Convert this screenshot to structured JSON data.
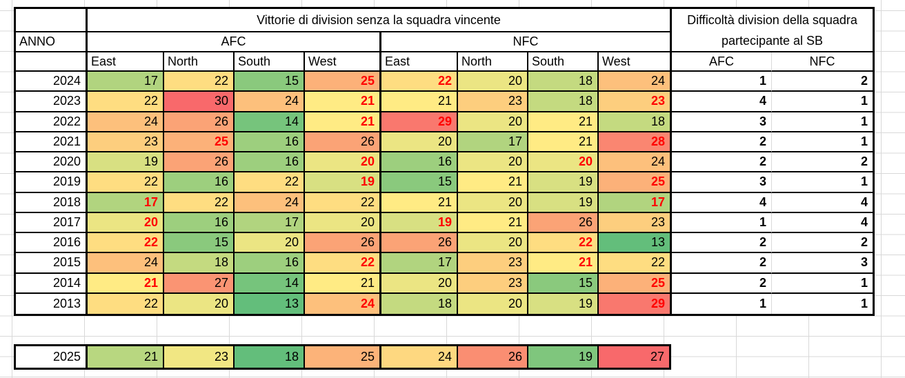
{
  "title": "Vittorie di division senza la squadra vincente",
  "anno_label": "ANNO",
  "conference_headers": [
    "AFC",
    "NFC"
  ],
  "division_headers": [
    "East",
    "North",
    "South",
    "West"
  ],
  "difficulty_header": "Difficoltà division della squadra partecipante al SB",
  "difficulty_subheaders": [
    "AFC",
    "NFC"
  ],
  "colors": {
    "red_highlight_text": "#FF0000",
    "border": "#000000",
    "gridline": "#D8D8D8",
    "scale_min_green": "#63BE7B",
    "scale_mid_yellow": "#FFEB84",
    "scale_max_red": "#F8696B"
  },
  "rows": [
    {
      "year": "2024",
      "cells": [
        {
          "v": "17",
          "bg": "#B1D47F",
          "red": false
        },
        {
          "v": "22",
          "bg": "#FEDD81",
          "red": false
        },
        {
          "v": "15",
          "bg": "#8AC97D",
          "red": false
        },
        {
          "v": "25",
          "bg": "#FCB179",
          "red": true
        },
        {
          "v": "22",
          "bg": "#FEDD81",
          "red": true
        },
        {
          "v": "20",
          "bg": "#EBE583",
          "red": false
        },
        {
          "v": "18",
          "bg": "#C4DA80",
          "red": false
        },
        {
          "v": "24",
          "bg": "#FDC07C",
          "red": false
        }
      ],
      "afc_diff": "1",
      "nfc_diff": "2"
    },
    {
      "year": "2023",
      "cells": [
        {
          "v": "22",
          "bg": "#FEDD81",
          "red": false
        },
        {
          "v": "30",
          "bg": "#F8696B",
          "red": false
        },
        {
          "v": "24",
          "bg": "#FDC07C",
          "red": false
        },
        {
          "v": "21",
          "bg": "#FFEB84",
          "red": true
        },
        {
          "v": "21",
          "bg": "#FFEB84",
          "red": false
        },
        {
          "v": "23",
          "bg": "#FDCE7E",
          "red": false
        },
        {
          "v": "18",
          "bg": "#C4DA80",
          "red": false
        },
        {
          "v": "23",
          "bg": "#FDCE7E",
          "red": true
        }
      ],
      "afc_diff": "4",
      "nfc_diff": "1"
    },
    {
      "year": "2022",
      "cells": [
        {
          "v": "24",
          "bg": "#FDC07C",
          "red": false
        },
        {
          "v": "26",
          "bg": "#FBA376",
          "red": false
        },
        {
          "v": "14",
          "bg": "#76C47C",
          "red": false
        },
        {
          "v": "21",
          "bg": "#FFEB84",
          "red": true
        },
        {
          "v": "29",
          "bg": "#F9786E",
          "red": true
        },
        {
          "v": "20",
          "bg": "#EBE583",
          "red": false
        },
        {
          "v": "21",
          "bg": "#FFEB84",
          "red": false
        },
        {
          "v": "18",
          "bg": "#C4DA80",
          "red": false
        }
      ],
      "afc_diff": "3",
      "nfc_diff": "1"
    },
    {
      "year": "2021",
      "cells": [
        {
          "v": "23",
          "bg": "#FDCE7E",
          "red": false
        },
        {
          "v": "25",
          "bg": "#FCB179",
          "red": true
        },
        {
          "v": "16",
          "bg": "#9DCF7E",
          "red": false
        },
        {
          "v": "26",
          "bg": "#FBA376",
          "red": false
        },
        {
          "v": "20",
          "bg": "#EBE583",
          "red": false
        },
        {
          "v": "17",
          "bg": "#B1D47F",
          "red": false
        },
        {
          "v": "21",
          "bg": "#FFEB84",
          "red": false
        },
        {
          "v": "28",
          "bg": "#FA8671",
          "red": true
        }
      ],
      "afc_diff": "2",
      "nfc_diff": "1"
    },
    {
      "year": "2020",
      "cells": [
        {
          "v": "19",
          "bg": "#D8E082",
          "red": false
        },
        {
          "v": "26",
          "bg": "#FBA376",
          "red": false
        },
        {
          "v": "16",
          "bg": "#9DCF7E",
          "red": false
        },
        {
          "v": "20",
          "bg": "#EBE583",
          "red": true
        },
        {
          "v": "16",
          "bg": "#9DCF7E",
          "red": false
        },
        {
          "v": "20",
          "bg": "#EBE583",
          "red": false
        },
        {
          "v": "20",
          "bg": "#EBE583",
          "red": true
        },
        {
          "v": "24",
          "bg": "#FDC07C",
          "red": false
        }
      ],
      "afc_diff": "2",
      "nfc_diff": "2"
    },
    {
      "year": "2019",
      "cells": [
        {
          "v": "22",
          "bg": "#FEDD81",
          "red": false
        },
        {
          "v": "16",
          "bg": "#9DCF7E",
          "red": false
        },
        {
          "v": "22",
          "bg": "#FEDD81",
          "red": false
        },
        {
          "v": "19",
          "bg": "#D8E082",
          "red": true
        },
        {
          "v": "15",
          "bg": "#8AC97D",
          "red": false
        },
        {
          "v": "21",
          "bg": "#FFEB84",
          "red": false
        },
        {
          "v": "19",
          "bg": "#D8E082",
          "red": false
        },
        {
          "v": "25",
          "bg": "#FCB179",
          "red": true
        }
      ],
      "afc_diff": "3",
      "nfc_diff": "1"
    },
    {
      "year": "2018",
      "cells": [
        {
          "v": "17",
          "bg": "#B1D47F",
          "red": true
        },
        {
          "v": "22",
          "bg": "#FEDD81",
          "red": false
        },
        {
          "v": "24",
          "bg": "#FDC07C",
          "red": false
        },
        {
          "v": "22",
          "bg": "#FEDD81",
          "red": false
        },
        {
          "v": "21",
          "bg": "#FFEB84",
          "red": false
        },
        {
          "v": "20",
          "bg": "#EBE583",
          "red": false
        },
        {
          "v": "19",
          "bg": "#D8E082",
          "red": false
        },
        {
          "v": "17",
          "bg": "#B1D47F",
          "red": true
        }
      ],
      "afc_diff": "4",
      "nfc_diff": "4"
    },
    {
      "year": "2017",
      "cells": [
        {
          "v": "20",
          "bg": "#EBE583",
          "red": true
        },
        {
          "v": "16",
          "bg": "#9DCF7E",
          "red": false
        },
        {
          "v": "17",
          "bg": "#B1D47F",
          "red": false
        },
        {
          "v": "20",
          "bg": "#EBE583",
          "red": false
        },
        {
          "v": "19",
          "bg": "#D8E082",
          "red": true
        },
        {
          "v": "21",
          "bg": "#FFEB84",
          "red": false
        },
        {
          "v": "26",
          "bg": "#FBA376",
          "red": false
        },
        {
          "v": "23",
          "bg": "#FDCE7E",
          "red": false
        }
      ],
      "afc_diff": "1",
      "nfc_diff": "4"
    },
    {
      "year": "2016",
      "cells": [
        {
          "v": "22",
          "bg": "#FEDD81",
          "red": true
        },
        {
          "v": "15",
          "bg": "#8AC97D",
          "red": false
        },
        {
          "v": "20",
          "bg": "#EBE583",
          "red": false
        },
        {
          "v": "26",
          "bg": "#FBA376",
          "red": false
        },
        {
          "v": "26",
          "bg": "#FBA376",
          "red": false
        },
        {
          "v": "20",
          "bg": "#EBE583",
          "red": false
        },
        {
          "v": "22",
          "bg": "#FEDD81",
          "red": true
        },
        {
          "v": "13",
          "bg": "#63BE7B",
          "red": false
        }
      ],
      "afc_diff": "2",
      "nfc_diff": "2"
    },
    {
      "year": "2015",
      "cells": [
        {
          "v": "24",
          "bg": "#FDC07C",
          "red": false
        },
        {
          "v": "18",
          "bg": "#C4DA80",
          "red": false
        },
        {
          "v": "16",
          "bg": "#9DCF7E",
          "red": false
        },
        {
          "v": "22",
          "bg": "#FEDD81",
          "red": true
        },
        {
          "v": "17",
          "bg": "#B1D47F",
          "red": false
        },
        {
          "v": "23",
          "bg": "#FDCE7E",
          "red": false
        },
        {
          "v": "21",
          "bg": "#FFEB84",
          "red": true
        },
        {
          "v": "22",
          "bg": "#FEDD81",
          "red": false
        }
      ],
      "afc_diff": "2",
      "nfc_diff": "3"
    },
    {
      "year": "2014",
      "cells": [
        {
          "v": "21",
          "bg": "#FFEB84",
          "red": true
        },
        {
          "v": "27",
          "bg": "#FA9473",
          "red": false
        },
        {
          "v": "14",
          "bg": "#76C47C",
          "red": false
        },
        {
          "v": "21",
          "bg": "#FFEB84",
          "red": false
        },
        {
          "v": "20",
          "bg": "#EBE583",
          "red": false
        },
        {
          "v": "23",
          "bg": "#FDCE7E",
          "red": false
        },
        {
          "v": "15",
          "bg": "#8AC97D",
          "red": false
        },
        {
          "v": "25",
          "bg": "#FCB179",
          "red": true
        }
      ],
      "afc_diff": "2",
      "nfc_diff": "1"
    },
    {
      "year": "2013",
      "cells": [
        {
          "v": "22",
          "bg": "#FEDD81",
          "red": false
        },
        {
          "v": "20",
          "bg": "#EBE583",
          "red": false
        },
        {
          "v": "13",
          "bg": "#63BE7B",
          "red": false
        },
        {
          "v": "24",
          "bg": "#FDC07C",
          "red": true
        },
        {
          "v": "18",
          "bg": "#C4DA80",
          "red": false
        },
        {
          "v": "20",
          "bg": "#EBE583",
          "red": false
        },
        {
          "v": "19",
          "bg": "#D8E082",
          "red": false
        },
        {
          "v": "29",
          "bg": "#F9786E",
          "red": true
        }
      ],
      "afc_diff": "1",
      "nfc_diff": "1"
    }
  ],
  "future_row": {
    "year": "2025",
    "cells": [
      {
        "v": "21",
        "bg": "#B8D780",
        "red": false
      },
      {
        "v": "23",
        "bg": "#F1E783",
        "red": false
      },
      {
        "v": "18",
        "bg": "#63BE7B",
        "red": false
      },
      {
        "v": "25",
        "bg": "#FCB379",
        "red": false
      },
      {
        "v": "24",
        "bg": "#FED880",
        "red": false
      },
      {
        "v": "26",
        "bg": "#FA8E72",
        "red": false
      },
      {
        "v": "19",
        "bg": "#7FC67D",
        "red": false
      },
      {
        "v": "27",
        "bg": "#F8696B",
        "red": false
      }
    ]
  }
}
